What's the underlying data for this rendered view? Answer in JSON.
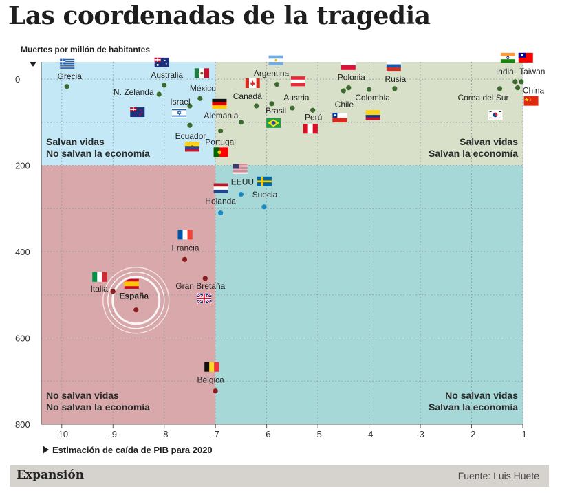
{
  "title": "Las coordenadas de la tragedia",
  "brand": "Expansión",
  "source": "Fuente: Luis Huete",
  "chart_data": {
    "type": "scatter",
    "ylabel": "Muertes por millón de habitantes",
    "xlabel": "Estimación de caída de PIB para 2020",
    "xlim": [
      -10.4,
      -1
    ],
    "ylim": [
      800,
      -40
    ],
    "y_inverted": true,
    "xticks": [
      -10,
      -9,
      -8,
      -7,
      -6,
      -5,
      -4,
      -3,
      -2,
      -1
    ],
    "yticks": [
      0,
      200,
      400,
      600,
      800
    ],
    "thresholds": {
      "x": -7,
      "y": 200
    },
    "grid": "dotted",
    "quadrants": [
      {
        "lines": [
          "Salvan vidas",
          "No salvan la economía"
        ],
        "color": "#c4e8f5",
        "corner": "top-left"
      },
      {
        "lines": [
          "Salvan vidas",
          "Salvan la economía"
        ],
        "color": "#d9e0ca",
        "corner": "top-right"
      },
      {
        "lines": [
          "No salvan vidas",
          "No salvan la economía"
        ],
        "color": "#d9a8aa",
        "corner": "bottom-left"
      },
      {
        "lines": [
          "No salvan vidas",
          "Salvan la economía"
        ],
        "color": "#a6d8d8",
        "corner": "bottom-right"
      }
    ],
    "points": [
      {
        "name": "Grecia",
        "x": -9.9,
        "y": 17,
        "color": "#3d6a2e"
      },
      {
        "name": "Australia",
        "x": -8.0,
        "y": 14,
        "color": "#3d6a2e"
      },
      {
        "name": "N. Zelanda",
        "x": -8.1,
        "y": 35,
        "color": "#3d6a2e"
      },
      {
        "name": "México",
        "x": -7.3,
        "y": 45,
        "color": "#3d6a2e"
      },
      {
        "name": "Israel",
        "x": -7.5,
        "y": 62,
        "color": "#3d6a2e"
      },
      {
        "name": "Ecuador",
        "x": -7.5,
        "y": 107,
        "color": "#3d6a2e"
      },
      {
        "name": "Argentina",
        "x": -5.8,
        "y": 12,
        "color": "#3d6a2e"
      },
      {
        "name": "Canadá",
        "x": -6.2,
        "y": 62,
        "color": "#3d6a2e"
      },
      {
        "name": "Brasil",
        "x": -5.9,
        "y": 57,
        "color": "#3d6a2e"
      },
      {
        "name": "Austria",
        "x": -5.5,
        "y": 67,
        "color": "#3d6a2e"
      },
      {
        "name": "Alemania",
        "x": -6.5,
        "y": 100,
        "color": "#3d6a2e"
      },
      {
        "name": "Portugal",
        "x": -6.9,
        "y": 120,
        "color": "#3d6a2e"
      },
      {
        "name": "Perú",
        "x": -5.1,
        "y": 72,
        "color": "#3d6a2e"
      },
      {
        "name": "Polonia",
        "x": -4.4,
        "y": 20,
        "color": "#3d6a2e"
      },
      {
        "name": "Chile",
        "x": -4.5,
        "y": 27,
        "color": "#3d6a2e"
      },
      {
        "name": "Colombia",
        "x": -4.0,
        "y": 24,
        "color": "#3d6a2e"
      },
      {
        "name": "Rusia",
        "x": -3.5,
        "y": 22,
        "color": "#3d6a2e"
      },
      {
        "name": "Corea del Sur",
        "x": -1.45,
        "y": 22,
        "color": "#3d6a2e"
      },
      {
        "name": "India",
        "x": -1.15,
        "y": 6,
        "color": "#3d6a2e"
      },
      {
        "name": "Taiwan",
        "x": -1.03,
        "y": 6,
        "color": "#3d6a2e"
      },
      {
        "name": "China",
        "x": -1.1,
        "y": 20,
        "color": "#3d6a2e"
      },
      {
        "name": "EEUU",
        "x": -6.5,
        "y": 267,
        "color": "#1a8ac2"
      },
      {
        "name": "Suecia",
        "x": -6.05,
        "y": 296,
        "color": "#1a8ac2"
      },
      {
        "name": "Holanda",
        "x": -6.9,
        "y": 310,
        "color": "#1a8ac2"
      },
      {
        "name": "Francia",
        "x": -7.6,
        "y": 418,
        "color": "#8b1c20"
      },
      {
        "name": "Gran Bretaña",
        "x": -7.2,
        "y": 462,
        "color": "#8b1c20"
      },
      {
        "name": "Italia",
        "x": -9.0,
        "y": 492,
        "color": "#8b1c20"
      },
      {
        "name": "España",
        "x": -8.55,
        "y": 535,
        "color": "#8b1c20"
      },
      {
        "name": "Bélgica",
        "x": -7.0,
        "y": 723,
        "color": "#8b1c20"
      }
    ]
  }
}
